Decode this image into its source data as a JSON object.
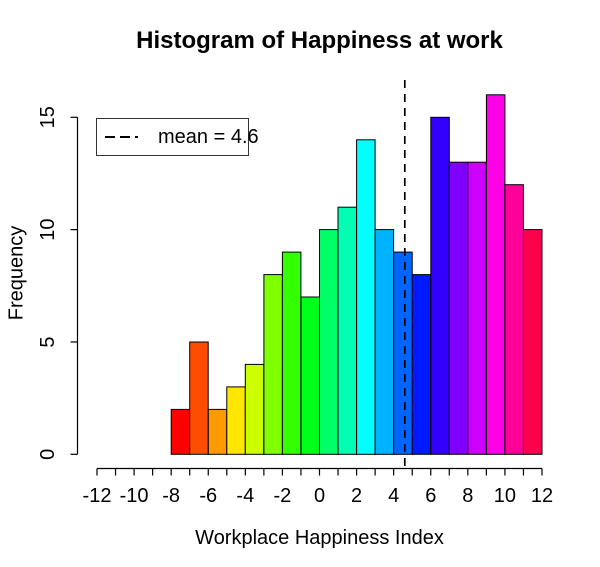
{
  "page": {
    "background": "#FFFFFF"
  },
  "chart_data": {
    "type": "bar",
    "subtype": "histogram",
    "title": "Histogram of Happiness at work",
    "xlabel": "Workplace Happiness Index",
    "ylabel": "Frequency",
    "xlim": [
      -12,
      12
    ],
    "ylim": [
      0,
      16
    ],
    "bins": {
      "start": -8,
      "width": 1
    },
    "counts": [
      2,
      5,
      2,
      3,
      4,
      8,
      9,
      7,
      10,
      11,
      14,
      10,
      9,
      8,
      15,
      13,
      13,
      16,
      12,
      10
    ],
    "bar_colors": [
      "#FF0000",
      "#FF4D00",
      "#FF9900",
      "#FFE600",
      "#CCFF00",
      "#80FF00",
      "#33FF00",
      "#00FF1A",
      "#00FF66",
      "#00FFB3",
      "#00FFFF",
      "#00B3FF",
      "#0066FF",
      "#001AFF",
      "#3300FF",
      "#8000FF",
      "#CC00FF",
      "#FF00E6",
      "#FF0099",
      "#FF004D"
    ],
    "bar_border_color": "#000000",
    "mean_line": {
      "value": 4.6,
      "color": "#000000",
      "style": "dashed"
    },
    "legend": {
      "label": "mean = 4.6",
      "position": "topleft",
      "line_style": "dashed"
    },
    "x_tick_interval": 1,
    "x_label_ticks": [
      -12,
      -10,
      -8,
      -6,
      -4,
      -2,
      0,
      2,
      4,
      6,
      8,
      10,
      12
    ],
    "y_ticks": [
      0,
      5,
      10,
      15
    ],
    "grid": false,
    "axis_color": "#000000",
    "text_color": "#000000"
  }
}
